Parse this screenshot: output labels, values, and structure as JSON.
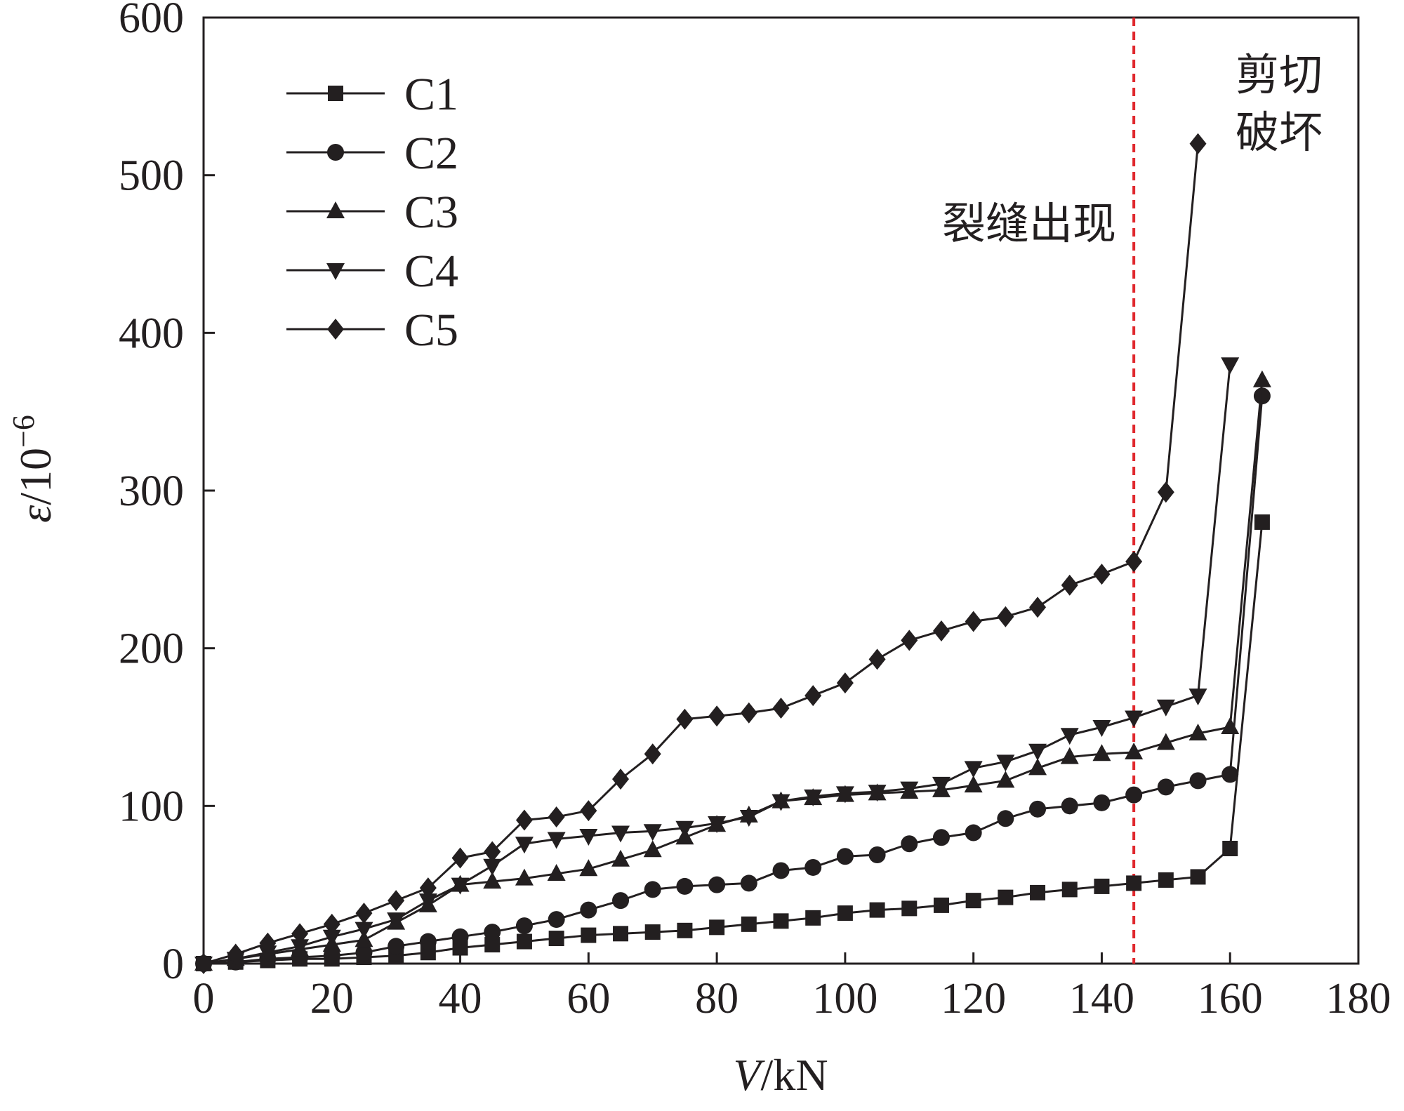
{
  "chart_data": {
    "type": "line",
    "xlabel": {
      "italic": "V",
      "rest": "/kN"
    },
    "ylabel": {
      "italic": "ε",
      "rest": "/10",
      "sup": "−6"
    },
    "xlim": [
      0,
      180
    ],
    "ylim": [
      0,
      600
    ],
    "xticks": [
      0,
      20,
      40,
      60,
      80,
      100,
      120,
      140,
      160,
      180
    ],
    "yticks": [
      0,
      100,
      200,
      300,
      400,
      500,
      600
    ],
    "grid": false,
    "legend_position": "top-left",
    "annotations": {
      "crack_line_x": 145,
      "crack_label": "裂缝出现",
      "failure_label_line1": "剪切",
      "failure_label_line2": "破坏"
    },
    "colors": {
      "series": "#231f20",
      "crack_line": "#e0282e",
      "axes": "#231f20"
    },
    "series": [
      {
        "name": "C1",
        "marker": "square",
        "x": [
          0,
          5,
          10,
          15,
          20,
          25,
          30,
          35,
          40,
          45,
          50,
          55,
          60,
          65,
          70,
          75,
          80,
          85,
          90,
          95,
          100,
          105,
          110,
          115,
          120,
          125,
          130,
          135,
          140,
          145,
          150,
          155,
          160,
          165
        ],
        "y": [
          0,
          1,
          2,
          3,
          3,
          4,
          5,
          7,
          10,
          12,
          14,
          16,
          18,
          19,
          20,
          21,
          23,
          25,
          27,
          29,
          32,
          34,
          35,
          37,
          40,
          42,
          45,
          47,
          49,
          51,
          53,
          55,
          73,
          280
        ]
      },
      {
        "name": "C2",
        "marker": "circle",
        "x": [
          0,
          5,
          10,
          15,
          20,
          25,
          30,
          35,
          40,
          45,
          50,
          55,
          60,
          65,
          70,
          75,
          80,
          85,
          90,
          95,
          100,
          105,
          110,
          115,
          120,
          125,
          130,
          135,
          140,
          145,
          150,
          155,
          160,
          165
        ],
        "y": [
          0,
          1,
          3,
          4,
          5,
          7,
          11,
          14,
          17,
          20,
          24,
          28,
          34,
          40,
          47,
          49,
          50,
          51,
          59,
          61,
          68,
          69,
          76,
          80,
          83,
          92,
          98,
          100,
          102,
          107,
          112,
          116,
          120,
          360
        ]
      },
      {
        "name": "C3",
        "marker": "triangle-up",
        "x": [
          0,
          5,
          10,
          15,
          20,
          25,
          30,
          35,
          40,
          45,
          50,
          55,
          60,
          65,
          70,
          75,
          80,
          85,
          90,
          95,
          100,
          105,
          110,
          115,
          120,
          125,
          130,
          135,
          140,
          145,
          150,
          155,
          160,
          165
        ],
        "y": [
          0,
          3,
          6,
          9,
          12,
          15,
          26,
          37,
          50,
          52,
          54,
          57,
          60,
          66,
          72,
          80,
          88,
          94,
          103,
          105,
          107,
          108,
          109,
          110,
          113,
          116,
          124,
          131,
          133,
          134,
          140,
          146,
          150,
          370
        ]
      },
      {
        "name": "C4",
        "marker": "triangle-down",
        "x": [
          0,
          5,
          10,
          15,
          20,
          25,
          30,
          35,
          40,
          45,
          50,
          55,
          60,
          65,
          70,
          75,
          80,
          85,
          90,
          95,
          100,
          105,
          110,
          115,
          120,
          125,
          130,
          135,
          140,
          145,
          150,
          155,
          160
        ],
        "y": [
          0,
          3,
          7,
          11,
          17,
          22,
          28,
          40,
          50,
          62,
          76,
          79,
          81,
          83,
          84,
          86,
          89,
          93,
          103,
          106,
          108,
          109,
          111,
          114,
          124,
          128,
          135,
          145,
          150,
          156,
          163,
          170,
          380
        ]
      },
      {
        "name": "C5",
        "marker": "diamond",
        "x": [
          0,
          5,
          10,
          15,
          20,
          25,
          30,
          35,
          40,
          45,
          50,
          55,
          60,
          65,
          70,
          75,
          80,
          85,
          90,
          95,
          100,
          105,
          110,
          115,
          120,
          125,
          130,
          135,
          140,
          145,
          150,
          155
        ],
        "y": [
          0,
          6,
          13,
          19,
          25,
          32,
          40,
          48,
          67,
          71,
          91,
          93,
          97,
          117,
          133,
          155,
          157,
          159,
          162,
          170,
          178,
          193,
          205,
          211,
          217,
          220,
          226,
          240,
          247,
          255,
          299,
          520
        ]
      }
    ]
  }
}
